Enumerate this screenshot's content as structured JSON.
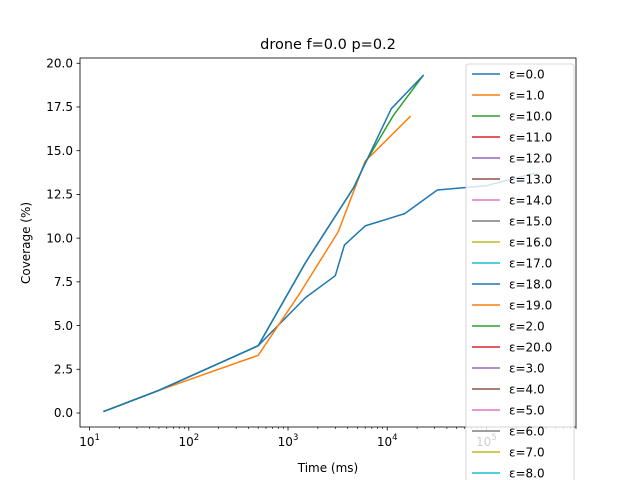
{
  "chart_data": {
    "type": "line",
    "title": "drone f=0.0 p=0.2",
    "xlabel": "Time (ms)",
    "ylabel": "Coverage (%)",
    "xscale": "log",
    "xlim": [
      8,
      800000
    ],
    "ylim": [
      -0.8,
      20.3
    ],
    "yticks": [
      0.0,
      2.5,
      5.0,
      7.5,
      10.0,
      12.5,
      15.0,
      17.5,
      20.0
    ],
    "ytick_labels": [
      "0.0",
      "2.5",
      "5.0",
      "7.5",
      "10.0",
      "12.5",
      "15.0",
      "17.5",
      "20.0"
    ],
    "xticks": [
      10,
      100,
      1000,
      10000,
      100000
    ],
    "xtick_labels": [
      {
        "base": "10",
        "exp": "1"
      },
      {
        "base": "10",
        "exp": "2"
      },
      {
        "base": "10",
        "exp": "3"
      },
      {
        "base": "10",
        "exp": "4"
      },
      {
        "base": "10",
        "exp": "5"
      }
    ],
    "grid": false,
    "legend_position": "top-right",
    "series": [
      {
        "name": "ε=0.0",
        "color": "#1f77b4",
        "points": [
          [
            14,
            0.1
          ],
          [
            50,
            1.3
          ],
          [
            500,
            3.85
          ],
          [
            1500,
            6.6
          ],
          [
            3000,
            7.85
          ],
          [
            3700,
            9.6
          ],
          [
            6000,
            10.7
          ],
          [
            15000,
            11.4
          ],
          [
            32000,
            12.75
          ],
          [
            100000,
            13.0
          ],
          [
            300000,
            13.7
          ]
        ]
      },
      {
        "name": "ε=1.0",
        "color": "#ff7f0e",
        "points": [
          [
            14,
            0.1
          ],
          [
            50,
            1.3
          ],
          [
            500,
            3.3
          ],
          [
            1300,
            6.8
          ],
          [
            3200,
            10.35
          ],
          [
            6000,
            14.4
          ],
          [
            17000,
            16.95
          ]
        ]
      },
      {
        "name": "ε=10.0",
        "color": "#2ca02c",
        "points": [
          [
            14,
            0.1
          ],
          [
            50,
            1.3
          ],
          [
            500,
            3.85
          ],
          [
            1500,
            8.6
          ],
          [
            4600,
            12.9
          ],
          [
            6000,
            14.3
          ],
          [
            11500,
            17.0
          ],
          [
            23000,
            19.3
          ]
        ]
      },
      {
        "name": "ε=11.0",
        "color": "#d62728",
        "points": []
      },
      {
        "name": "ε=12.0",
        "color": "#9467bd",
        "points": []
      },
      {
        "name": "ε=13.0",
        "color": "#8c564b",
        "points": []
      },
      {
        "name": "ε=14.0",
        "color": "#e377c2",
        "points": []
      },
      {
        "name": "ε=15.0",
        "color": "#7f7f7f",
        "points": []
      },
      {
        "name": "ε=16.0",
        "color": "#bcbd22",
        "points": []
      },
      {
        "name": "ε=17.0",
        "color": "#17becf",
        "points": []
      },
      {
        "name": "ε=18.0",
        "color": "#1f77b4",
        "points": [
          [
            14,
            0.1
          ],
          [
            50,
            1.3
          ],
          [
            500,
            3.85
          ],
          [
            1500,
            8.6
          ],
          [
            4600,
            12.9
          ],
          [
            11000,
            17.4
          ],
          [
            23000,
            19.3
          ]
        ]
      },
      {
        "name": "ε=19.0",
        "color": "#ff7f0e",
        "points": []
      },
      {
        "name": "ε=2.0",
        "color": "#2ca02c",
        "points": []
      },
      {
        "name": "ε=20.0",
        "color": "#d62728",
        "points": []
      },
      {
        "name": "ε=3.0",
        "color": "#9467bd",
        "points": []
      },
      {
        "name": "ε=4.0",
        "color": "#8c564b",
        "points": []
      },
      {
        "name": "ε=5.0",
        "color": "#e377c2",
        "points": []
      },
      {
        "name": "ε=6.0",
        "color": "#7f7f7f",
        "points": []
      },
      {
        "name": "ε=7.0",
        "color": "#bcbd22",
        "points": []
      },
      {
        "name": "ε=8.0",
        "color": "#17becf",
        "points": []
      }
    ]
  }
}
